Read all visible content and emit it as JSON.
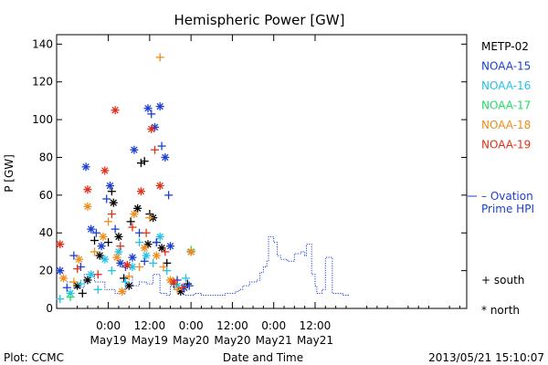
{
  "chart_data": {
    "type": "scatter",
    "title": "Hemispheric Power [GW]",
    "ylabel": "P [GW]",
    "xlabel": "Date and Time",
    "ylim": [
      0,
      145
    ],
    "yticks": [
      0,
      20,
      40,
      60,
      80,
      100,
      120,
      140
    ],
    "xlim_hours_from_may19_0000": [
      -15,
      104
    ],
    "xticks": [
      {
        "hour": 0,
        "time": "0:00",
        "date": "May19"
      },
      {
        "hour": 12,
        "time": "12:00",
        "date": "May19"
      },
      {
        "hour": 24,
        "time": "0:00",
        "date": "May20"
      },
      {
        "hour": 36,
        "time": "12:00",
        "date": "May20"
      },
      {
        "hour": 48,
        "time": "0:00",
        "date": "May21"
      },
      {
        "hour": 60,
        "time": "12:00",
        "date": "May21"
      }
    ],
    "legend": {
      "placement": "right",
      "series": [
        {
          "name": "METP-02",
          "color": "#000000"
        },
        {
          "name": "NOAA-15",
          "color": "#1c3fd0"
        },
        {
          "name": "NOAA-16",
          "color": "#22c3e6"
        },
        {
          "name": "NOAA-17",
          "color": "#22dd66"
        },
        {
          "name": "NOAA-18",
          "color": "#f08c1a"
        },
        {
          "name": "NOAA-19",
          "color": "#e03018"
        }
      ],
      "ovation_label_line1": "– Ovation",
      "ovation_label_line2": "Prime HPI",
      "ovation_color": "#1c3fd0",
      "south_label": "+ south",
      "north_label": "* north"
    },
    "series": [
      {
        "name": "METP-02",
        "color": "#000000",
        "points": [
          {
            "x": -9,
            "y": 12,
            "m": "star"
          },
          {
            "x": -7.5,
            "y": 8,
            "m": "plus"
          },
          {
            "x": -6,
            "y": 15,
            "m": "star"
          },
          {
            "x": -4,
            "y": 36,
            "m": "plus"
          },
          {
            "x": -2.5,
            "y": 28,
            "m": "star"
          },
          {
            "x": 0,
            "y": 35,
            "m": "plus"
          },
          {
            "x": 1,
            "y": 62,
            "m": "plus"
          },
          {
            "x": 1.5,
            "y": 56,
            "m": "star"
          },
          {
            "x": 3,
            "y": 38,
            "m": "star"
          },
          {
            "x": 4.5,
            "y": 16,
            "m": "plus"
          },
          {
            "x": 6,
            "y": 12,
            "m": "star"
          },
          {
            "x": 6.5,
            "y": 46,
            "m": "plus"
          },
          {
            "x": 8.5,
            "y": 53,
            "m": "star"
          },
          {
            "x": 9.5,
            "y": 77,
            "m": "plus"
          },
          {
            "x": 10.5,
            "y": 78,
            "m": "plus"
          },
          {
            "x": 11.5,
            "y": 34,
            "m": "star"
          },
          {
            "x": 12,
            "y": 50,
            "m": "plus"
          },
          {
            "x": 13,
            "y": 48,
            "m": "star"
          },
          {
            "x": 14,
            "y": 35,
            "m": "plus"
          },
          {
            "x": 15.5,
            "y": 32,
            "m": "star"
          },
          {
            "x": 17,
            "y": 24,
            "m": "plus"
          },
          {
            "x": 19,
            "y": 13,
            "m": "plus"
          },
          {
            "x": 21,
            "y": 9,
            "m": "star"
          },
          {
            "x": 23,
            "y": 13,
            "m": "plus"
          },
          {
            "x": 24,
            "y": 30,
            "m": "star"
          }
        ]
      },
      {
        "name": "NOAA-15",
        "color": "#1c3fd0",
        "points": [
          {
            "x": -14,
            "y": 20,
            "m": "star"
          },
          {
            "x": -12,
            "y": 11,
            "m": "plus"
          },
          {
            "x": -10,
            "y": 28,
            "m": "plus"
          },
          {
            "x": -8,
            "y": 22,
            "m": "plus"
          },
          {
            "x": -6.5,
            "y": 75,
            "m": "star"
          },
          {
            "x": -5,
            "y": 42,
            "m": "star"
          },
          {
            "x": -3.5,
            "y": 40,
            "m": "plus"
          },
          {
            "x": -2,
            "y": 33,
            "m": "star"
          },
          {
            "x": -0.5,
            "y": 58,
            "m": "plus"
          },
          {
            "x": 0.5,
            "y": 65,
            "m": "star"
          },
          {
            "x": 2,
            "y": 42,
            "m": "plus"
          },
          {
            "x": 3.5,
            "y": 24,
            "m": "star"
          },
          {
            "x": 5,
            "y": 22,
            "m": "plus"
          },
          {
            "x": 7,
            "y": 27,
            "m": "star"
          },
          {
            "x": 7.5,
            "y": 84,
            "m": "star"
          },
          {
            "x": 9,
            "y": 40,
            "m": "plus"
          },
          {
            "x": 10.5,
            "y": 25,
            "m": "plus"
          },
          {
            "x": 11.5,
            "y": 106,
            "m": "star"
          },
          {
            "x": 12.5,
            "y": 103,
            "m": "plus"
          },
          {
            "x": 13.5,
            "y": 96,
            "m": "star"
          },
          {
            "x": 14,
            "y": 35,
            "m": "plus"
          },
          {
            "x": 15,
            "y": 107,
            "m": "star"
          },
          {
            "x": 15.5,
            "y": 86,
            "m": "plus"
          },
          {
            "x": 16.5,
            "y": 80,
            "m": "star"
          },
          {
            "x": 17.5,
            "y": 60,
            "m": "plus"
          },
          {
            "x": 18,
            "y": 33,
            "m": "star"
          },
          {
            "x": 20,
            "y": 15,
            "m": "plus"
          },
          {
            "x": 22,
            "y": 11,
            "m": "star"
          },
          {
            "x": 23.5,
            "y": 12,
            "m": "plus"
          }
        ]
      },
      {
        "name": "NOAA-16",
        "color": "#22c3e6",
        "points": [
          {
            "x": -14,
            "y": 5,
            "m": "plus"
          },
          {
            "x": -11,
            "y": 8,
            "m": "star"
          },
          {
            "x": -8,
            "y": 13,
            "m": "plus"
          },
          {
            "x": -5,
            "y": 18,
            "m": "star"
          },
          {
            "x": -3,
            "y": 10,
            "m": "plus"
          },
          {
            "x": -1,
            "y": 26,
            "m": "star"
          },
          {
            "x": 1,
            "y": 20,
            "m": "plus"
          },
          {
            "x": 3,
            "y": 30,
            "m": "star"
          },
          {
            "x": 5,
            "y": 14,
            "m": "plus"
          },
          {
            "x": 7,
            "y": 22,
            "m": "star"
          },
          {
            "x": 9,
            "y": 35,
            "m": "plus"
          },
          {
            "x": 11,
            "y": 28,
            "m": "star"
          },
          {
            "x": 13,
            "y": 24,
            "m": "plus"
          },
          {
            "x": 15,
            "y": 38,
            "m": "star"
          },
          {
            "x": 17,
            "y": 20,
            "m": "plus"
          },
          {
            "x": 20,
            "y": 12,
            "m": "star"
          },
          {
            "x": 22.5,
            "y": 16,
            "m": "plus"
          }
        ]
      },
      {
        "name": "NOAA-17",
        "color": "#22dd66",
        "points": [
          {
            "x": -11,
            "y": 6,
            "m": "plus"
          },
          {
            "x": 24,
            "y": 31,
            "m": "plus"
          }
        ]
      },
      {
        "name": "NOAA-18",
        "color": "#f08c1a",
        "points": [
          {
            "x": -13,
            "y": 16,
            "m": "star"
          },
          {
            "x": -10,
            "y": 14,
            "m": "plus"
          },
          {
            "x": -8.5,
            "y": 26,
            "m": "star"
          },
          {
            "x": -6,
            "y": 54,
            "m": "star"
          },
          {
            "x": -4,
            "y": 30,
            "m": "plus"
          },
          {
            "x": -1.5,
            "y": 38,
            "m": "star"
          },
          {
            "x": 0,
            "y": 46,
            "m": "plus"
          },
          {
            "x": 2.5,
            "y": 27,
            "m": "star"
          },
          {
            "x": 4,
            "y": 9,
            "m": "star"
          },
          {
            "x": 6,
            "y": 17,
            "m": "plus"
          },
          {
            "x": 7.5,
            "y": 50,
            "m": "star"
          },
          {
            "x": 9,
            "y": 22,
            "m": "plus"
          },
          {
            "x": 10.5,
            "y": 32,
            "m": "star"
          },
          {
            "x": 12,
            "y": 48,
            "m": "plus"
          },
          {
            "x": 14,
            "y": 28,
            "m": "star"
          },
          {
            "x": 15,
            "y": 133,
            "m": "plus"
          },
          {
            "x": 16,
            "y": 22,
            "m": "plus"
          },
          {
            "x": 18,
            "y": 15,
            "m": "star"
          },
          {
            "x": 20,
            "y": 10,
            "m": "plus"
          },
          {
            "x": 24,
            "y": 30,
            "m": "star"
          }
        ]
      },
      {
        "name": "NOAA-19",
        "color": "#e03018",
        "points": [
          {
            "x": -14,
            "y": 34,
            "m": "star"
          },
          {
            "x": -9,
            "y": 21,
            "m": "plus"
          },
          {
            "x": -6,
            "y": 63,
            "m": "star"
          },
          {
            "x": -3,
            "y": 18,
            "m": "plus"
          },
          {
            "x": -1,
            "y": 73,
            "m": "star"
          },
          {
            "x": 1,
            "y": 50,
            "m": "plus"
          },
          {
            "x": 2,
            "y": 105,
            "m": "star"
          },
          {
            "x": 3.5,
            "y": 33,
            "m": "plus"
          },
          {
            "x": 5.5,
            "y": 23,
            "m": "star"
          },
          {
            "x": 7,
            "y": 43,
            "m": "plus"
          },
          {
            "x": 9.5,
            "y": 62,
            "m": "star"
          },
          {
            "x": 11,
            "y": 40,
            "m": "plus"
          },
          {
            "x": 12.5,
            "y": 95,
            "m": "star"
          },
          {
            "x": 13.5,
            "y": 84,
            "m": "plus"
          },
          {
            "x": 15,
            "y": 65,
            "m": "star"
          },
          {
            "x": 16.5,
            "y": 30,
            "m": "plus"
          },
          {
            "x": 19,
            "y": 14,
            "m": "star"
          },
          {
            "x": 21.5,
            "y": 11,
            "m": "plus"
          }
        ]
      }
    ],
    "ovation_hpi": {
      "name": "Ovation Prime HPI",
      "color": "#1c3fd0",
      "points": [
        [
          -12,
          14
        ],
        [
          -10,
          11
        ],
        [
          -7,
          18
        ],
        [
          -4,
          14
        ],
        [
          -1,
          10
        ],
        [
          2,
          8
        ],
        [
          5,
          17
        ],
        [
          7,
          12
        ],
        [
          9,
          14
        ],
        [
          11,
          13
        ],
        [
          13,
          18
        ],
        [
          15,
          8
        ],
        [
          17,
          7
        ],
        [
          18,
          12
        ],
        [
          20,
          9
        ],
        [
          22,
          7
        ],
        [
          25,
          8
        ],
        [
          27,
          7
        ],
        [
          30,
          7
        ],
        [
          33,
          7
        ],
        [
          34,
          8
        ],
        [
          36,
          8
        ],
        [
          37,
          9
        ],
        [
          38,
          10
        ],
        [
          39,
          12
        ],
        [
          40,
          12
        ],
        [
          41,
          14
        ],
        [
          43,
          15
        ],
        [
          44,
          19
        ],
        [
          45,
          22
        ],
        [
          46,
          25
        ],
        [
          46.5,
          38
        ],
        [
          47.5,
          38
        ],
        [
          48,
          35
        ],
        [
          49,
          28
        ],
        [
          50,
          26
        ],
        [
          52,
          25
        ],
        [
          54,
          29
        ],
        [
          56,
          30
        ],
        [
          57,
          28
        ],
        [
          57.5,
          34
        ],
        [
          58.5,
          34
        ],
        [
          59,
          18
        ],
        [
          60,
          12
        ],
        [
          60.5,
          8
        ],
        [
          62,
          10
        ],
        [
          63,
          27
        ],
        [
          64.5,
          27
        ],
        [
          65,
          8
        ],
        [
          68,
          7
        ],
        [
          70,
          7
        ]
      ]
    }
  },
  "footer": {
    "left": "Plot: CCMC",
    "right": "2013/05/21 15:10:07"
  }
}
